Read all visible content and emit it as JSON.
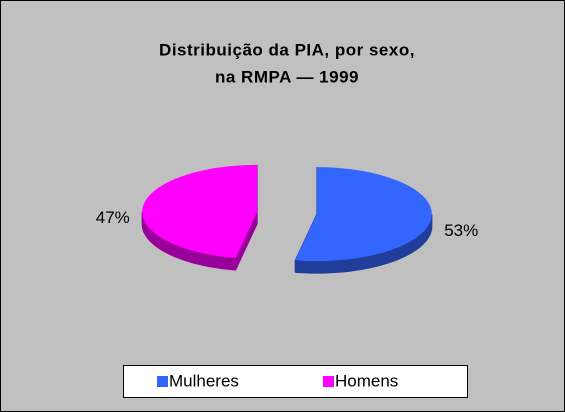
{
  "chart_data": {
    "type": "pie",
    "title": [
      "Distribuição da PIA, por sexo,",
      "na RMPA — 1999"
    ],
    "categories": [
      "Mulheres",
      "Homens"
    ],
    "values": [
      53,
      47
    ],
    "value_labels": [
      "53%",
      "47%"
    ],
    "colors": [
      "#3366ff",
      "#ff00ff"
    ],
    "legend": "bottom"
  }
}
